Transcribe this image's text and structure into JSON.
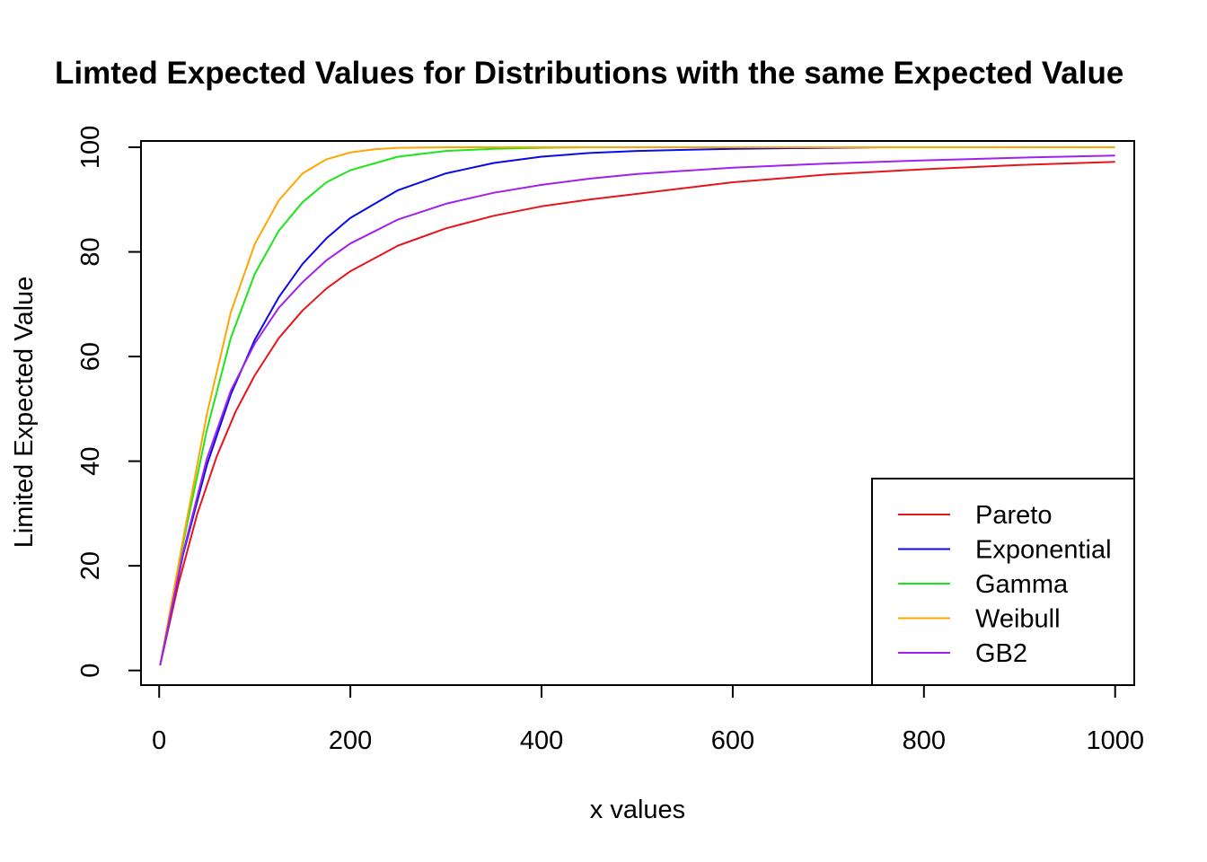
{
  "chart_data": {
    "type": "line",
    "title": "Limted Expected Values for Distributions with the same Expected Value",
    "xlabel": "x values",
    "ylabel": "Limited Expected Value",
    "xlim": [
      -19,
      1020
    ],
    "ylim": [
      -2.8,
      101.2
    ],
    "x_ticks": [
      0,
      200,
      400,
      600,
      800,
      1000
    ],
    "y_ticks": [
      0,
      20,
      40,
      60,
      80,
      100
    ],
    "grid": false,
    "legend_position": "bottom-right",
    "series": [
      {
        "name": "Pareto",
        "color": "#E8141C",
        "x": [
          1,
          20,
          40,
          60,
          80,
          100,
          125,
          150,
          175,
          200,
          250,
          300,
          350,
          400,
          450,
          500,
          600,
          700,
          800,
          900,
          1000
        ],
        "y": [
          1,
          16.4,
          30,
          40.8,
          49.5,
          56.4,
          63.5,
          68.8,
          73,
          76.3,
          81.2,
          84.5,
          86.9,
          88.7,
          90,
          91.1,
          93.3,
          94.8,
          95.8,
          96.6,
          97.2
        ]
      },
      {
        "name": "Exponential",
        "color": "#0A0AE6",
        "x": [
          1,
          25,
          50,
          75,
          100,
          125,
          150,
          175,
          200,
          250,
          300,
          350,
          400,
          450,
          500,
          600,
          700,
          760
        ],
        "y": [
          1,
          22.1,
          39.3,
          52.8,
          63.2,
          71.3,
          77.7,
          82.6,
          86.5,
          91.8,
          95,
          97,
          98.2,
          98.9,
          99.3,
          99.7,
          99.9,
          100
        ]
      },
      {
        "name": "Gamma",
        "color": "#1AE61A",
        "x": [
          1,
          25,
          50,
          75,
          100,
          125,
          150,
          175,
          200,
          250,
          300,
          350,
          400,
          450,
          480
        ],
        "y": [
          1,
          24.2,
          46,
          63.6,
          75.8,
          84,
          89.5,
          93.3,
          95.6,
          98.2,
          99.3,
          99.7,
          99.9,
          100,
          100
        ]
      },
      {
        "name": "Weibull",
        "color": "#FFA500",
        "x": [
          1,
          25,
          50,
          75,
          100,
          125,
          150,
          175,
          200,
          225,
          250,
          300,
          400,
          600,
          800,
          1000
        ],
        "y": [
          1,
          25,
          49,
          68.5,
          81.5,
          89.8,
          95,
          97.7,
          99,
          99.6,
          99.9,
          100,
          100,
          100,
          100,
          100
        ]
      },
      {
        "name": "GB2",
        "color": "#A020F0",
        "x": [
          1,
          25,
          50,
          75,
          100,
          125,
          150,
          175,
          200,
          250,
          300,
          350,
          400,
          450,
          500,
          600,
          700,
          800,
          900,
          1000
        ],
        "y": [
          1,
          22.5,
          40.5,
          53.5,
          62.5,
          69.3,
          74.2,
          78.4,
          81.6,
          86.2,
          89.2,
          91.3,
          92.8,
          94,
          94.9,
          96.1,
          96.9,
          97.5,
          98,
          98.4
        ]
      }
    ]
  }
}
